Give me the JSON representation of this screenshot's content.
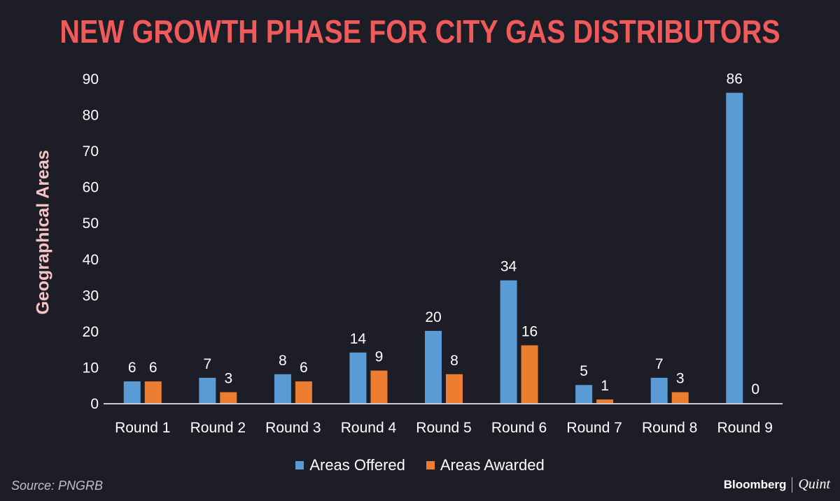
{
  "title": "NEW GROWTH PHASE FOR CITY GAS DISTRIBUTORS",
  "source": "Source: PNGRB",
  "brand": {
    "main": "Bloomberg",
    "sub": "Quint"
  },
  "colors": {
    "background": "#1c1d27",
    "title": "#f05a5a",
    "ylabel": "#f6c3c3",
    "text": "#ffffff",
    "axis": "#c9cad1"
  },
  "chart_data": {
    "type": "bar",
    "ylabel": "Geographical Areas",
    "xlabel": "",
    "ylim": [
      0,
      90
    ],
    "yticks": [
      0,
      10,
      20,
      30,
      40,
      50,
      60,
      70,
      80,
      90
    ],
    "grid": false,
    "legend_position": "bottom",
    "categories": [
      "Round 1",
      "Round 2",
      "Round 3",
      "Round 4",
      "Round 5",
      "Round 6",
      "Round 7",
      "Round 8",
      "Round 9"
    ],
    "series": [
      {
        "name": "Areas Offered",
        "color": "#5b9bd5",
        "values": [
          6,
          7,
          8,
          14,
          20,
          34,
          5,
          7,
          86
        ]
      },
      {
        "name": "Areas Awarded",
        "color": "#ed7d31",
        "values": [
          6,
          3,
          6,
          9,
          8,
          16,
          1,
          3,
          0
        ]
      }
    ]
  }
}
